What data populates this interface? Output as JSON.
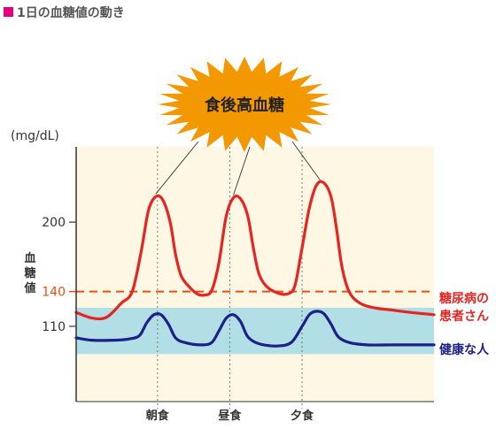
{
  "header": {
    "title": "1日の血糖値の動き",
    "marker_color": "#e6007e"
  },
  "burst": {
    "text": "食後高血糖",
    "color": "#f39800"
  },
  "chart_data": {
    "type": "line",
    "title": "1日の血糖値の動き",
    "unit_label": "(mg/dL)",
    "ylabel": "血糖値",
    "ylim": [
      45,
      265
    ],
    "y_ticks": [
      {
        "value": 200,
        "label": "200"
      },
      {
        "value": 110,
        "label": "110"
      }
    ],
    "threshold": {
      "value": 140,
      "label": "140",
      "color": "#e8500f"
    },
    "normal_band": {
      "from": 86,
      "to": 126,
      "color": "#b2dfe5"
    },
    "meals": [
      {
        "label": "朝食",
        "x": 1
      },
      {
        "label": "昼食",
        "x": 3
      },
      {
        "label": "夕食",
        "x": 5
      }
    ],
    "x_range": [
      -1.25,
      8.65
    ],
    "series": [
      {
        "name": "糖尿病の患者さん",
        "color": "#e52521",
        "points": [
          [
            -1.25,
            122
          ],
          [
            -0.8,
            117
          ],
          [
            -0.4,
            118
          ],
          [
            0,
            130
          ],
          [
            0.3,
            140
          ],
          [
            0.55,
            175
          ],
          [
            0.75,
            210
          ],
          [
            0.95,
            222
          ],
          [
            1.15,
            219
          ],
          [
            1.35,
            200
          ],
          [
            1.5,
            172
          ],
          [
            1.65,
            154
          ],
          [
            1.85,
            145
          ],
          [
            2.1,
            138
          ],
          [
            2.3,
            137
          ],
          [
            2.5,
            141
          ],
          [
            2.7,
            165
          ],
          [
            2.9,
            205
          ],
          [
            3.1,
            221
          ],
          [
            3.3,
            220
          ],
          [
            3.5,
            205
          ],
          [
            3.65,
            178
          ],
          [
            3.8,
            156
          ],
          [
            4.0,
            145
          ],
          [
            4.3,
            139
          ],
          [
            4.6,
            138
          ],
          [
            4.8,
            145
          ],
          [
            5.0,
            178
          ],
          [
            5.2,
            212
          ],
          [
            5.4,
            232
          ],
          [
            5.6,
            234
          ],
          [
            5.8,
            222
          ],
          [
            5.95,
            195
          ],
          [
            6.1,
            162
          ],
          [
            6.3,
            140
          ],
          [
            6.6,
            130
          ],
          [
            7.0,
            126
          ],
          [
            7.5,
            124
          ],
          [
            8.0,
            122
          ],
          [
            8.65,
            120
          ]
        ]
      },
      {
        "name": "健康な人",
        "color": "#1d2088",
        "points": [
          [
            -1.25,
            100
          ],
          [
            -0.8,
            98
          ],
          [
            -0.2,
            98
          ],
          [
            0.2,
            99
          ],
          [
            0.5,
            102
          ],
          [
            0.7,
            113
          ],
          [
            0.9,
            120
          ],
          [
            1.1,
            120
          ],
          [
            1.3,
            112
          ],
          [
            1.5,
            100
          ],
          [
            1.75,
            96
          ],
          [
            2.2,
            94
          ],
          [
            2.5,
            96
          ],
          [
            2.7,
            106
          ],
          [
            2.9,
            117
          ],
          [
            3.1,
            120
          ],
          [
            3.3,
            114
          ],
          [
            3.5,
            101
          ],
          [
            3.8,
            95
          ],
          [
            4.3,
            93
          ],
          [
            4.7,
            96
          ],
          [
            5.0,
            110
          ],
          [
            5.2,
            120
          ],
          [
            5.4,
            123
          ],
          [
            5.6,
            121
          ],
          [
            5.8,
            112
          ],
          [
            6.0,
            101
          ],
          [
            6.3,
            96
          ],
          [
            6.8,
            94
          ],
          [
            7.5,
            94
          ],
          [
            8.65,
            94
          ]
        ]
      }
    ]
  }
}
